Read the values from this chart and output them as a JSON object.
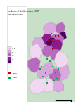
{
  "title_line1": "Incidence of bladder cancer (C67)",
  "title_line2": "Rate per 100,000",
  "legend_values": [
    "< 2",
    "2 - 3",
    "3 - 4",
    "4 - 5",
    "> 5"
  ],
  "legend_colors": [
    "#f0d8f0",
    "#d9a8df",
    "#b86abf",
    "#8b1a8b",
    "#4d0066"
  ],
  "sig_high_label": "Higher",
  "sig_low_label": "Lower",
  "sig_high_color": "#cc0000",
  "sig_low_color": "#00aa44",
  "background_color": "#ffffff",
  "sea_color": "#c8dfc8",
  "scale_bar_label": "0    50   100km"
}
